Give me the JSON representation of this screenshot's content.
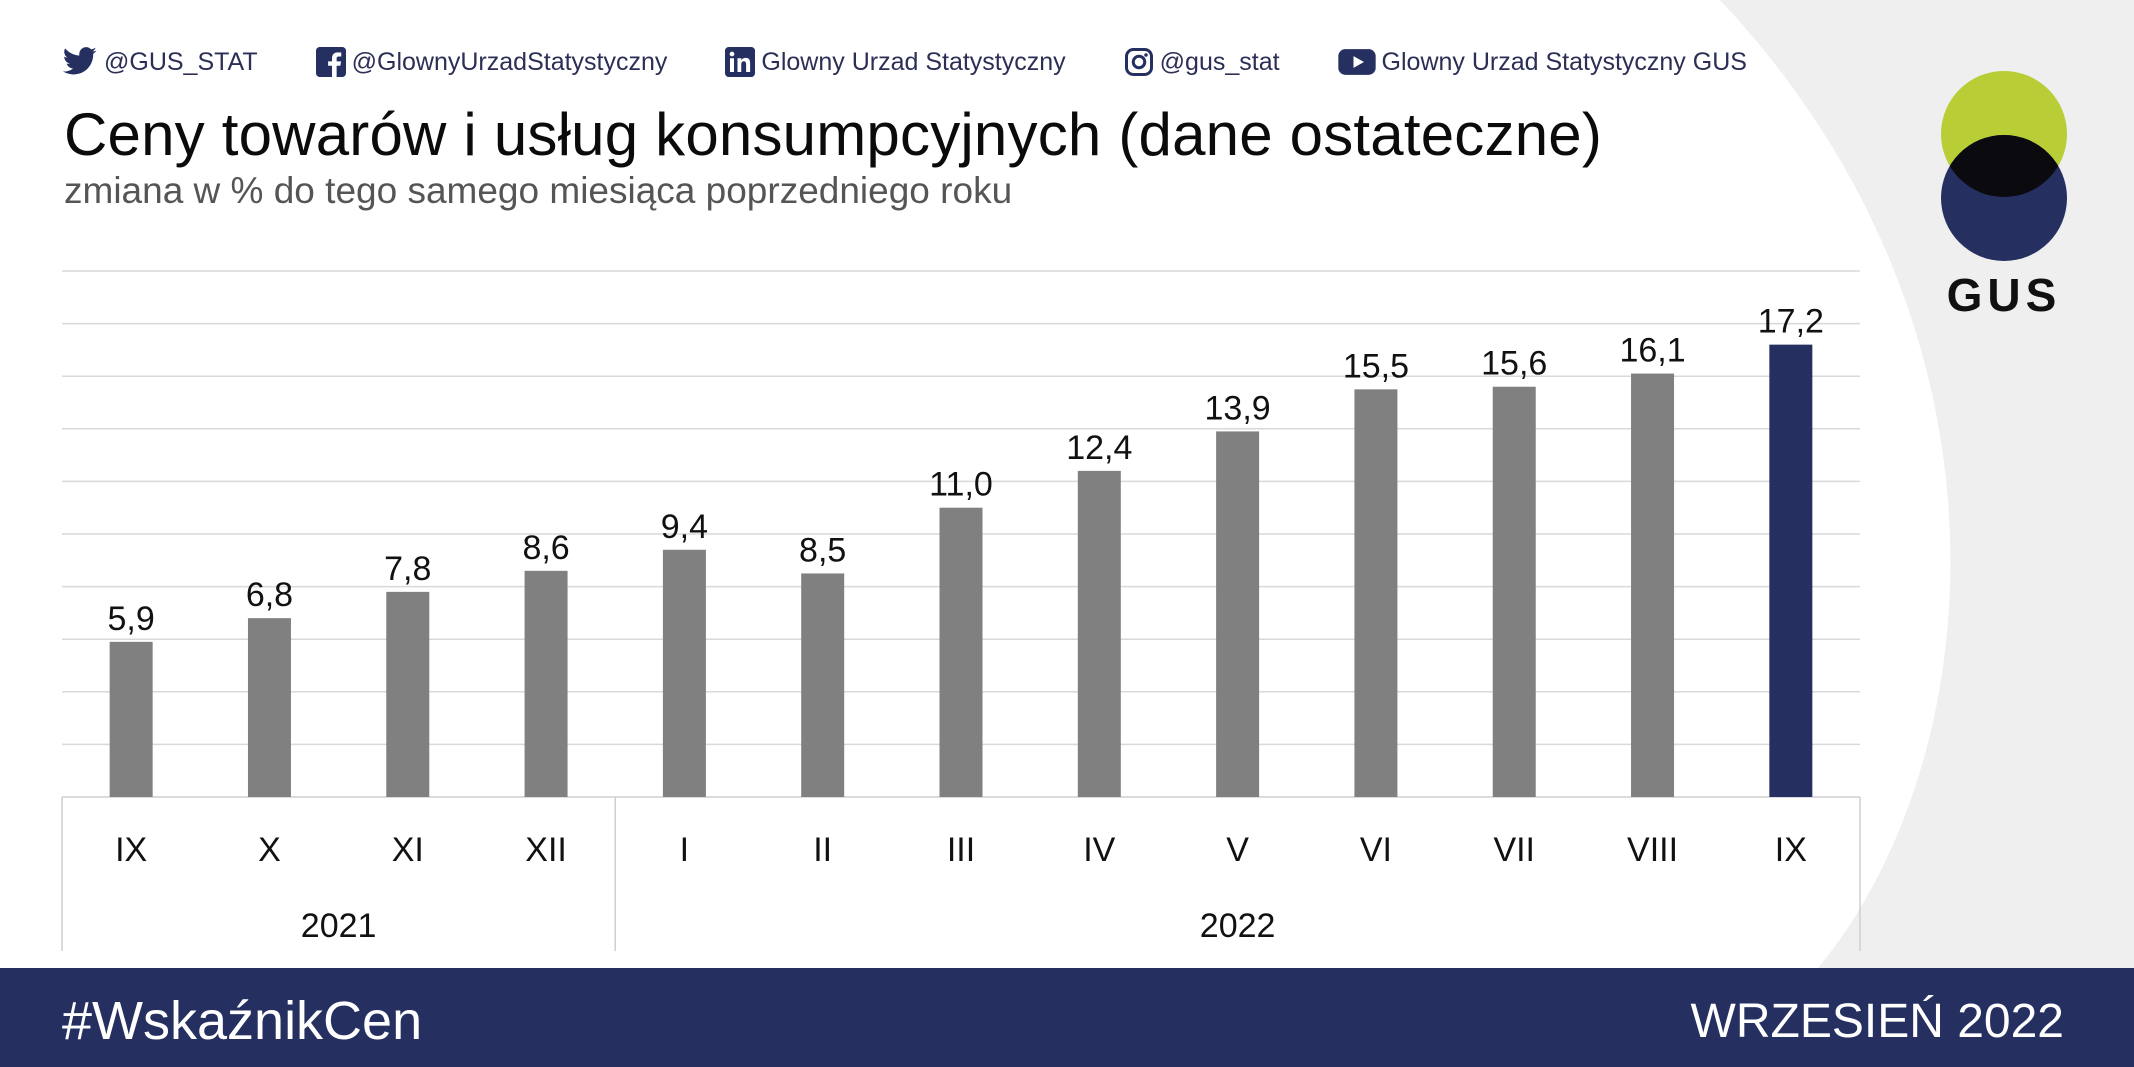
{
  "social": [
    {
      "icon": "twitter-icon",
      "label": "@GUS_STAT"
    },
    {
      "icon": "facebook-icon",
      "label": "@GlownyUrzadStatystyczny"
    },
    {
      "icon": "linkedin-icon",
      "label": "Glowny Urzad Statystyczny"
    },
    {
      "icon": "instagram-icon",
      "label": "@gus_stat"
    },
    {
      "icon": "youtube-icon",
      "label": "Glowny Urzad Statystyczny GUS"
    }
  ],
  "logo": {
    "text": "GUS",
    "colors": {
      "top": "#b9cd37",
      "bottom": "#253061",
      "overlap": "#0b0b0f"
    }
  },
  "footer": {
    "hashtag": "#WskaźnikCen",
    "period": "WRZESIEŃ 2022"
  },
  "colors": {
    "bar": "#808080",
    "highlight": "#253061",
    "footer": "#253061",
    "background_shape": "#eeefee"
  },
  "chart_data": {
    "type": "bar",
    "title": "Ceny towarów i usług konsumpcyjnych (dane ostateczne)",
    "subtitle": "zmiana w % do tego samego miesiąca poprzedniego roku",
    "categories": [
      "IX",
      "X",
      "XI",
      "XII",
      "I",
      "II",
      "III",
      "IV",
      "V",
      "VI",
      "VII",
      "VIII",
      "IX"
    ],
    "values": [
      5.9,
      6.8,
      7.8,
      8.6,
      9.4,
      8.5,
      11.0,
      12.4,
      13.9,
      15.5,
      15.6,
      16.1,
      17.2
    ],
    "value_labels": [
      "5,9",
      "6,8",
      "7,8",
      "8,6",
      "9,4",
      "8,5",
      "11,0",
      "12,4",
      "13,9",
      "15,5",
      "15,6",
      "16,1",
      "17,2"
    ],
    "highlight_index": 12,
    "groups": [
      {
        "label": "2021",
        "count": 4
      },
      {
        "label": "2022",
        "count": 9
      }
    ],
    "ylim": [
      0,
      20
    ],
    "grid": true,
    "legend": "none"
  }
}
